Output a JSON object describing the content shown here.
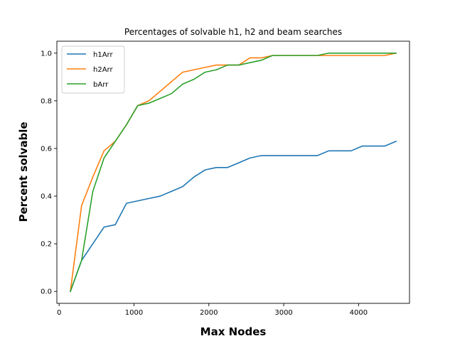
{
  "chart_data": {
    "type": "line",
    "title": "Percentages of solvable h1, h2 and beam searches",
    "xlabel": "Max Nodes",
    "ylabel": "Percent solvable",
    "xlim": [
      -30,
      4680
    ],
    "ylim": [
      -0.05,
      1.05
    ],
    "xticks": [
      0,
      1000,
      2000,
      3000,
      4000
    ],
    "yticks": [
      0.0,
      0.2,
      0.4,
      0.6,
      0.8,
      1.0
    ],
    "xtick_labels": [
      "0",
      "1000",
      "2000",
      "3000",
      "4000"
    ],
    "ytick_labels": [
      "0.0",
      "0.2",
      "0.4",
      "0.6",
      "0.8",
      "1.0"
    ],
    "grid": false,
    "legend_position": "top-left",
    "x": [
      150,
      300,
      450,
      600,
      750,
      900,
      1050,
      1200,
      1350,
      1500,
      1650,
      1800,
      1950,
      2100,
      2250,
      2400,
      2550,
      2700,
      2850,
      3000,
      3150,
      3300,
      3450,
      3600,
      3750,
      3900,
      4050,
      4200,
      4350,
      4500
    ],
    "series": [
      {
        "name": "h1Arr",
        "color": "#1f77b4",
        "values": [
          0.0,
          0.13,
          0.2,
          0.27,
          0.28,
          0.37,
          0.38,
          0.39,
          0.4,
          0.42,
          0.44,
          0.48,
          0.51,
          0.52,
          0.52,
          0.54,
          0.56,
          0.57,
          0.57,
          0.57,
          0.57,
          0.57,
          0.57,
          0.59,
          0.59,
          0.59,
          0.61,
          0.61,
          0.61,
          0.63
        ]
      },
      {
        "name": "h2Arr",
        "color": "#ff7f0e",
        "values": [
          0.0,
          0.36,
          0.48,
          0.59,
          0.63,
          0.7,
          0.78,
          0.8,
          0.84,
          0.88,
          0.92,
          0.93,
          0.94,
          0.95,
          0.95,
          0.95,
          0.98,
          0.98,
          0.99,
          0.99,
          0.99,
          0.99,
          0.99,
          0.99,
          0.99,
          0.99,
          0.99,
          0.99,
          0.99,
          1.0
        ]
      },
      {
        "name": "bArr",
        "color": "#2ca02c",
        "values": [
          0.0,
          0.13,
          0.42,
          0.56,
          0.63,
          0.7,
          0.78,
          0.79,
          0.81,
          0.83,
          0.87,
          0.89,
          0.92,
          0.93,
          0.95,
          0.95,
          0.96,
          0.97,
          0.99,
          0.99,
          0.99,
          0.99,
          0.99,
          1.0,
          1.0,
          1.0,
          1.0,
          1.0,
          1.0,
          1.0
        ]
      }
    ]
  }
}
